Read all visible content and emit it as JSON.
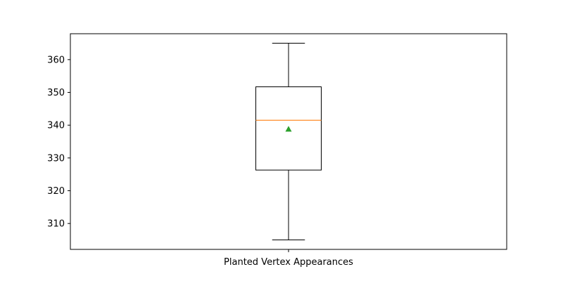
{
  "chart_data": {
    "type": "box",
    "categories": [
      "Planted Vertex Appearances"
    ],
    "boxes": [
      {
        "whisker_low": 305,
        "q1": 326.3,
        "median": 341.5,
        "q3": 351.7,
        "whisker_high": 365,
        "mean": 338.8
      }
    ],
    "ylim": [
      302.1,
      367.9
    ],
    "yticks": [
      310,
      320,
      330,
      340,
      350,
      360
    ],
    "grid": false,
    "colors": {
      "box": "#000000",
      "median": "#ff7f0e",
      "mean": "#2ca02c"
    }
  }
}
